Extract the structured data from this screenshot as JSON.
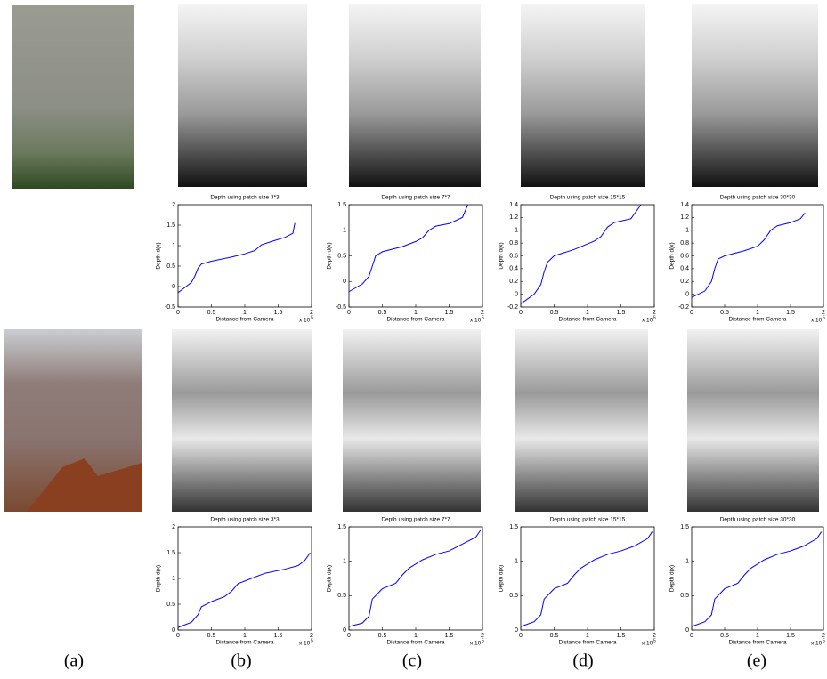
{
  "chart_data": [
    {
      "type": "line",
      "title": "Depth using patch size 3*3",
      "xlabel": "Distance from Camera",
      "ylabel": "Depth d(x)",
      "offset_text": "x 10",
      "offset_exponent": "5",
      "x": [
        0,
        0.2,
        0.25,
        0.3,
        0.35,
        0.5,
        0.8,
        1.0,
        1.15,
        1.2,
        1.25,
        1.4,
        1.6,
        1.72,
        1.75
      ],
      "series": [
        {
          "color": "#0000ff",
          "values": [
            -0.15,
            0.1,
            0.25,
            0.45,
            0.55,
            0.62,
            0.72,
            0.8,
            0.88,
            0.95,
            1.02,
            1.1,
            1.2,
            1.3,
            1.55
          ]
        }
      ],
      "xlim": [
        0,
        2
      ],
      "xticks": [
        0,
        0.5,
        1,
        1.5,
        2
      ],
      "ylim": [
        -0.5,
        2
      ],
      "yticks": [
        -0.5,
        0,
        0.5,
        1,
        1.5,
        2
      ]
    },
    {
      "type": "line",
      "title": "Depth using patch size 7*7",
      "xlabel": "Distance from Camera",
      "ylabel": "Depth d(x)",
      "offset_text": "x 10",
      "offset_exponent": "5",
      "x": [
        0,
        0.2,
        0.3,
        0.35,
        0.4,
        0.5,
        0.8,
        1.0,
        1.1,
        1.2,
        1.3,
        1.5,
        1.7,
        1.78
      ],
      "series": [
        {
          "color": "#0000ff",
          "values": [
            -0.2,
            -0.05,
            0.1,
            0.3,
            0.5,
            0.58,
            0.68,
            0.78,
            0.85,
            1.0,
            1.08,
            1.13,
            1.25,
            1.5
          ]
        }
      ],
      "xlim": [
        0,
        2
      ],
      "xticks": [
        0,
        0.5,
        1,
        1.5,
        2
      ],
      "ylim": [
        -0.5,
        1.5
      ],
      "yticks": [
        -0.5,
        0,
        0.5,
        1,
        1.5
      ]
    },
    {
      "type": "line",
      "title": "Depth using patch size 15*15",
      "xlabel": "Distance from Camera",
      "ylabel": "Depth d(x)",
      "offset_text": "x 10",
      "offset_exponent": "5",
      "x": [
        0,
        0.2,
        0.3,
        0.35,
        0.4,
        0.5,
        0.8,
        1.1,
        1.2,
        1.3,
        1.4,
        1.65,
        1.8
      ],
      "series": [
        {
          "color": "#0000ff",
          "values": [
            -0.15,
            0.0,
            0.15,
            0.35,
            0.5,
            0.6,
            0.7,
            0.83,
            0.9,
            1.05,
            1.12,
            1.18,
            1.4
          ]
        }
      ],
      "xlim": [
        0,
        2
      ],
      "xticks": [
        0,
        0.5,
        1,
        1.5,
        2
      ],
      "ylim": [
        -0.2,
        1.4
      ],
      "yticks": [
        -0.2,
        0,
        0.2,
        0.4,
        0.6,
        0.8,
        1,
        1.2,
        1.4
      ]
    },
    {
      "type": "line",
      "title": "Depth using patch size 30*30",
      "xlabel": "Distance from Camera",
      "ylabel": "Depth d(x)",
      "offset_text": "x 10",
      "offset_exponent": "5",
      "x": [
        0,
        0.2,
        0.3,
        0.35,
        0.4,
        0.5,
        0.8,
        1.0,
        1.1,
        1.2,
        1.3,
        1.5,
        1.65,
        1.72
      ],
      "series": [
        {
          "color": "#0000ff",
          "values": [
            -0.05,
            0.05,
            0.2,
            0.4,
            0.55,
            0.6,
            0.68,
            0.75,
            0.85,
            1.0,
            1.07,
            1.12,
            1.18,
            1.27
          ]
        }
      ],
      "xlim": [
        0,
        2
      ],
      "xticks": [
        0,
        0.5,
        1,
        1.5,
        2
      ],
      "ylim": [
        -0.2,
        1.4
      ],
      "yticks": [
        -0.2,
        0,
        0.2,
        0.4,
        0.6,
        0.8,
        1,
        1.2,
        1.4
      ]
    },
    {
      "type": "line",
      "title": "Depth using patch size 3*3",
      "xlabel": "Distance from Camera",
      "ylabel": "Depth d(x)",
      "offset_text": "x 10",
      "offset_exponent": "5",
      "x": [
        0,
        0.2,
        0.3,
        0.35,
        0.5,
        0.7,
        0.8,
        0.9,
        1.1,
        1.3,
        1.6,
        1.8,
        1.9,
        1.98
      ],
      "series": [
        {
          "color": "#0000ff",
          "values": [
            0.05,
            0.15,
            0.3,
            0.45,
            0.55,
            0.65,
            0.75,
            0.9,
            1.0,
            1.1,
            1.18,
            1.25,
            1.35,
            1.5
          ]
        }
      ],
      "xlim": [
        0,
        2
      ],
      "xticks": [
        0,
        0.5,
        1,
        1.5,
        2
      ],
      "ylim": [
        0,
        2
      ],
      "yticks": [
        0,
        0.5,
        1,
        1.5,
        2
      ]
    },
    {
      "type": "line",
      "title": "Depth using patch size 7*7",
      "xlabel": "Distance from Camera",
      "ylabel": "Depth d(x)",
      "offset_text": "x 10",
      "offset_exponent": "5",
      "x": [
        0,
        0.2,
        0.3,
        0.35,
        0.5,
        0.7,
        0.8,
        0.9,
        1.1,
        1.3,
        1.5,
        1.7,
        1.9,
        1.97
      ],
      "series": [
        {
          "color": "#0000ff",
          "values": [
            0.05,
            0.1,
            0.2,
            0.45,
            0.6,
            0.68,
            0.8,
            0.9,
            1.02,
            1.1,
            1.15,
            1.25,
            1.35,
            1.45
          ]
        }
      ],
      "xlim": [
        0,
        2
      ],
      "xticks": [
        0,
        0.5,
        1,
        1.5,
        2
      ],
      "ylim": [
        0,
        1.5
      ],
      "yticks": [
        0,
        0.5,
        1,
        1.5
      ]
    },
    {
      "type": "line",
      "title": "Depth using patch size 15*15",
      "xlabel": "Distance from Camera",
      "ylabel": "Depth d(x)",
      "offset_text": "x 10",
      "offset_exponent": "5",
      "x": [
        0,
        0.2,
        0.3,
        0.35,
        0.5,
        0.7,
        0.8,
        0.9,
        1.1,
        1.3,
        1.5,
        1.7,
        1.9,
        1.97
      ],
      "series": [
        {
          "color": "#0000ff",
          "values": [
            0.05,
            0.12,
            0.22,
            0.45,
            0.6,
            0.68,
            0.8,
            0.9,
            1.02,
            1.1,
            1.15,
            1.22,
            1.33,
            1.43
          ]
        }
      ],
      "xlim": [
        0,
        2
      ],
      "xticks": [
        0,
        0.5,
        1,
        1.5,
        2
      ],
      "ylim": [
        0,
        1.5
      ],
      "yticks": [
        0,
        0.5,
        1,
        1.5
      ]
    },
    {
      "type": "line",
      "title": "Depth using patch size 30*30",
      "xlabel": "Distance from Camera",
      "ylabel": "Depth d(x)",
      "offset_text": "x 10",
      "offset_exponent": "5",
      "x": [
        0,
        0.2,
        0.3,
        0.35,
        0.5,
        0.7,
        0.8,
        0.9,
        1.1,
        1.3,
        1.5,
        1.7,
        1.9,
        1.97
      ],
      "series": [
        {
          "color": "#0000ff",
          "values": [
            0.05,
            0.12,
            0.22,
            0.45,
            0.6,
            0.68,
            0.8,
            0.9,
            1.02,
            1.1,
            1.15,
            1.22,
            1.33,
            1.43
          ]
        }
      ],
      "xlim": [
        0,
        2
      ],
      "xticks": [
        0,
        0.5,
        1,
        1.5,
        2
      ],
      "ylim": [
        0,
        1.5
      ],
      "yticks": [
        0,
        0.5,
        1,
        1.5
      ]
    }
  ],
  "panel_labels": [
    "(a)",
    "(b)",
    "(c)",
    "(d)",
    "(e)"
  ]
}
